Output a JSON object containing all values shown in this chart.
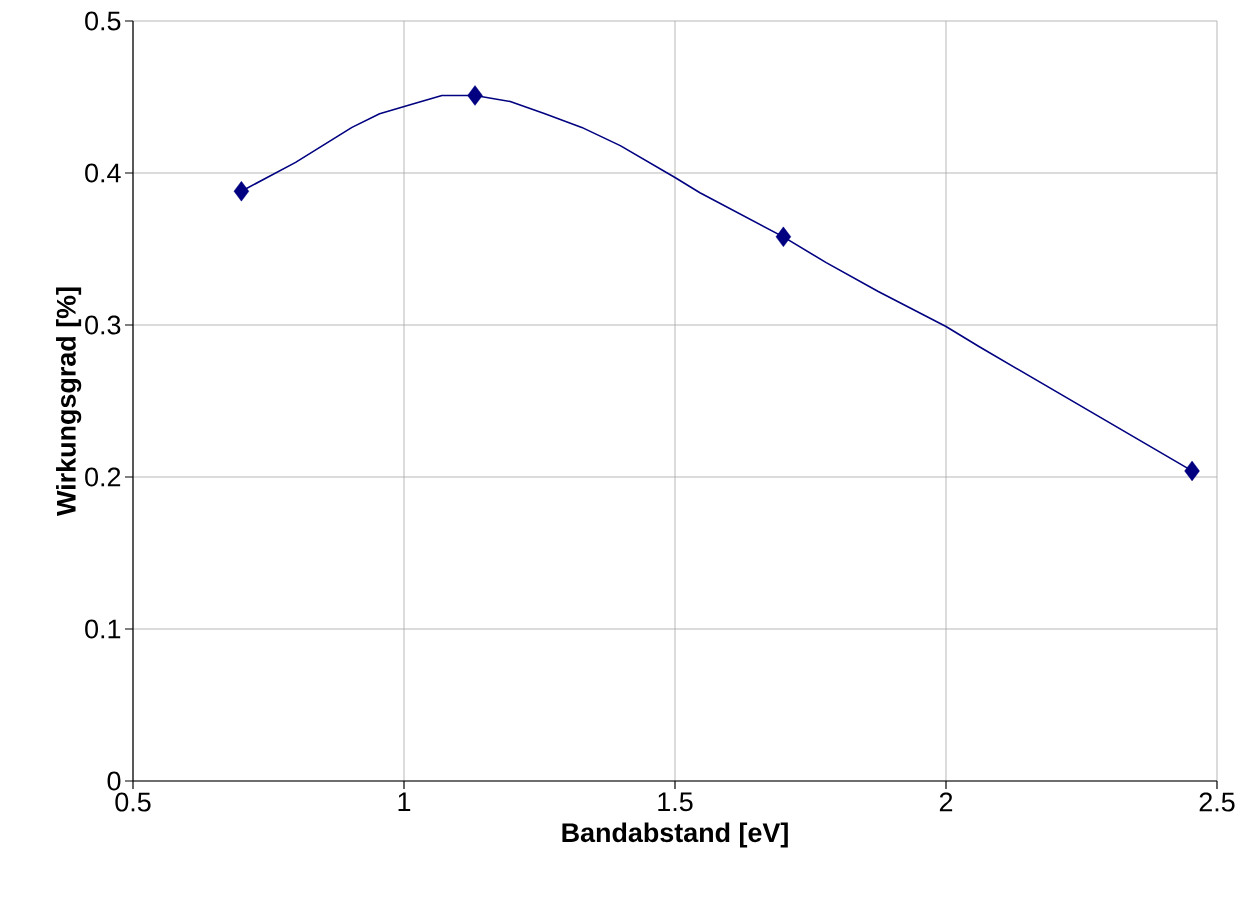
{
  "chart_data": {
    "type": "line",
    "xlabel": "Bandabstand [eV]",
    "ylabel": "Wirkungsgrad [%]",
    "xlim": [
      0.5,
      2.5
    ],
    "ylim": [
      0,
      0.5
    ],
    "xticks": [
      0.5,
      1,
      1.5,
      2,
      2.5
    ],
    "yticks": [
      0,
      0.1,
      0.2,
      0.3,
      0.4,
      0.5
    ],
    "grid": true,
    "series": [
      {
        "color": "#000080",
        "line_style": "solid",
        "x": [
          0.7,
          0.8,
          0.904,
          0.955,
          1.013,
          1.07,
          1.131,
          1.196,
          1.26,
          1.328,
          1.399,
          1.5,
          1.546,
          1.7,
          1.779,
          1.875,
          2.0,
          2.06,
          2.454
        ],
        "values": [
          0.388,
          0.407,
          0.43,
          0.439,
          0.445,
          0.451,
          0.451,
          0.447,
          0.439,
          0.43,
          0.418,
          0.397,
          0.387,
          0.358,
          0.341,
          0.322,
          0.299,
          0.286,
          0.204
        ]
      },
      {
        "type": "scatter",
        "color": "#000080",
        "marker": "diamond",
        "x": [
          0.7,
          1.131,
          1.7,
          2.454
        ],
        "values": [
          0.388,
          0.451,
          0.358,
          0.204
        ]
      }
    ]
  }
}
